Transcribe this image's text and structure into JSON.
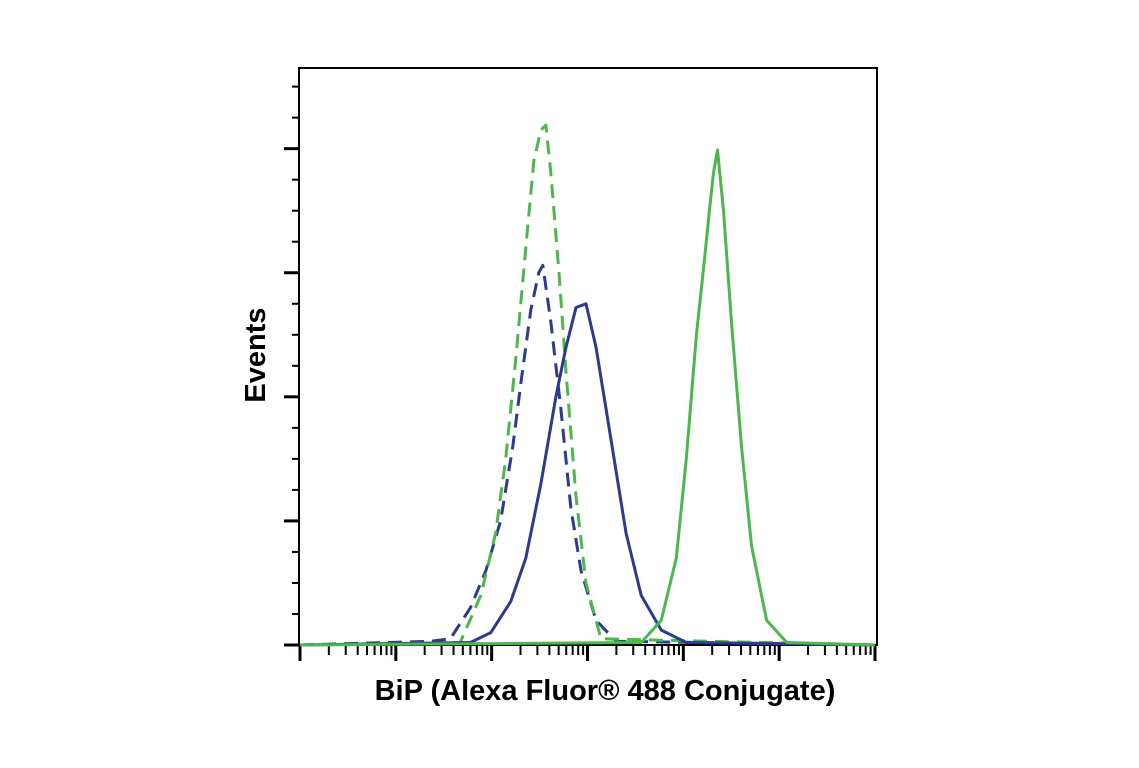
{
  "chart_data": {
    "type": "line",
    "ylabel": "Events",
    "xlabel": "BiP (Alexa Fluor® 488 Conjugate)",
    "xscale": "log",
    "xlim": [
      1,
      1000000
    ],
    "xticks": [
      1,
      10,
      100,
      1000,
      10000,
      100000,
      1000000
    ],
    "xminorticks": [
      2,
      3,
      4,
      5,
      6,
      7,
      8,
      9,
      20,
      30,
      40,
      50,
      60,
      70,
      80,
      90,
      200,
      300,
      400,
      500,
      600,
      700,
      800,
      900,
      2000,
      3000,
      4000,
      5000,
      6000,
      7000,
      8000,
      9000,
      20000,
      30000,
      40000,
      50000,
      60000,
      70000,
      80000,
      90000,
      200000,
      300000,
      400000,
      500000,
      600000,
      700000,
      800000,
      900000
    ],
    "ylim": [
      0,
      4.65
    ],
    "yticks": [
      0,
      1,
      2,
      3,
      4
    ],
    "yminorticks": [
      0.25,
      0.5,
      0.75,
      1.25,
      1.5,
      1.75,
      2.25,
      2.5,
      2.75,
      3.25,
      3.5,
      3.75,
      4.25,
      4.5
    ],
    "series": [
      {
        "color": "#2e3a8c",
        "dashed": true,
        "x": [
          1,
          23,
          37,
          60,
          87,
          124,
          166,
          201,
          256,
          310,
          342,
          415,
          528,
          671,
          855,
          1227,
          1988,
          1000000
        ],
        "values": [
          0,
          0.03,
          0.05,
          0.3,
          0.6,
          1.0,
          1.6,
          2.1,
          2.7,
          3.0,
          3.06,
          2.6,
          1.9,
          1.1,
          0.6,
          0.2,
          0.03,
          0
        ]
      },
      {
        "color": "#4cb84c",
        "dashed": true,
        "x": [
          1,
          47,
          77,
          110,
          140,
          178,
          227,
          275,
          326,
          368,
          415,
          504,
          596,
          759,
          964,
          1384,
          1000000
        ],
        "values": [
          0,
          0.02,
          0.4,
          0.9,
          1.5,
          2.3,
          3.2,
          3.9,
          4.15,
          4.19,
          3.8,
          3.0,
          2.2,
          1.2,
          0.5,
          0.05,
          0
        ]
      },
      {
        "color": "#2e3a8c",
        "dashed": false,
        "x": [
          1,
          60,
          98,
          158,
          227,
          326,
          468,
          596,
          759,
          964,
          1227,
          1563,
          1988,
          2531,
          3631,
          5888,
          10740,
          1000000
        ],
        "values": [
          0,
          0.02,
          0.1,
          0.35,
          0.7,
          1.3,
          2.0,
          2.4,
          2.72,
          2.75,
          2.4,
          1.9,
          1.4,
          0.9,
          0.4,
          0.12,
          0.02,
          0
        ]
      },
      {
        "color": "#4cb84c",
        "dashed": false,
        "x": [
          1,
          3631,
          5888,
          8453,
          10740,
          13680,
          16600,
          18720,
          20610,
          22700,
          26240,
          31840,
          40500,
          51500,
          73960,
          120000,
          1000000
        ],
        "values": [
          0,
          0.02,
          0.2,
          0.7,
          1.5,
          2.5,
          3.1,
          3.5,
          3.8,
          3.99,
          3.5,
          2.6,
          1.6,
          0.8,
          0.2,
          0.02,
          0
        ]
      }
    ]
  }
}
